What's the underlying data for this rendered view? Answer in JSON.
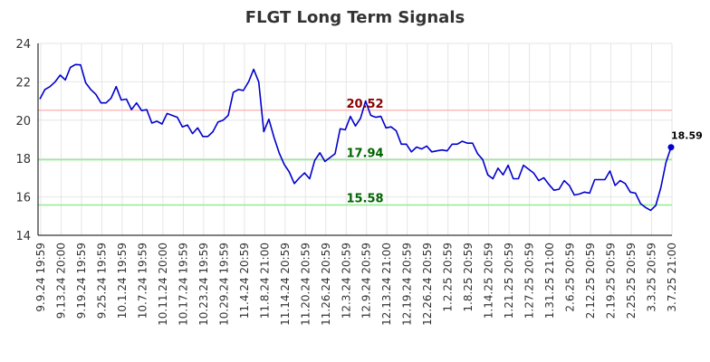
{
  "chart_data": {
    "type": "line",
    "title": "FLGT Long Term Signals",
    "xlabel": "",
    "ylabel": "",
    "ylim": [
      14,
      24
    ],
    "yticks": [
      14,
      16,
      18,
      20,
      22,
      24
    ],
    "grid": true,
    "x_tick_labels": [
      "9.9.24 19:59",
      "9.13.24 20:00",
      "9.19.24 19:59",
      "9.25.24 19:59",
      "10.1.24 19:59",
      "10.7.24 19:59",
      "10.11.24 20:00",
      "10.17.24 19:59",
      "10.23.24 19:59",
      "10.29.24 19:59",
      "11.4.24 20:59",
      "11.8.24 21:00",
      "11.14.24 20:59",
      "11.20.24 20:59",
      "11.26.24 20:59",
      "12.3.24 20:59",
      "12.9.24 20:59",
      "12.13.24 21:00",
      "12.19.24 20:59",
      "12.26.24 20:59",
      "1.2.25 20:59",
      "1.8.25 20:59",
      "1.14.25 20:59",
      "1.21.25 20:59",
      "1.27.25 20:59",
      "1.31.25 21:00",
      "2.6.25 20:59",
      "2.12.25 20:59",
      "2.19.25 20:59",
      "2.25.25 20:59",
      "3.3.25 20:59",
      "3.7.25 21:00"
    ],
    "series": [
      {
        "color": "#0000cc",
        "values": [
          21.1,
          21.6,
          21.75,
          22.0,
          22.35,
          22.1,
          22.75,
          22.9,
          22.88,
          21.95,
          21.6,
          21.35,
          20.9,
          20.9,
          21.15,
          21.75,
          21.05,
          21.1,
          20.55,
          20.9,
          20.5,
          20.55,
          19.85,
          19.95,
          19.8,
          20.35,
          20.25,
          20.15,
          19.65,
          19.75,
          19.3,
          19.6,
          19.15,
          19.15,
          19.4,
          19.9,
          20.0,
          20.25,
          21.45,
          21.6,
          21.55,
          22.0,
          22.65,
          22.0,
          19.4,
          20.05,
          19.1,
          18.3,
          17.7,
          17.3,
          16.7,
          17.0,
          17.25,
          16.95,
          17.9,
          18.3,
          17.85,
          18.05,
          18.25,
          19.55,
          19.5,
          20.2,
          19.7,
          20.1,
          21.0,
          20.25,
          20.15,
          20.2,
          19.6,
          19.65,
          19.45,
          18.75,
          18.75,
          18.35,
          18.6,
          18.5,
          18.65,
          18.35,
          18.4,
          18.45,
          18.4,
          18.75,
          18.75,
          18.9,
          18.8,
          18.8,
          18.25,
          17.95,
          17.15,
          16.95,
          17.5,
          17.15,
          17.65,
          16.95,
          16.95,
          17.65,
          17.45,
          17.25,
          16.85,
          17.0,
          16.65,
          16.35,
          16.4,
          16.85,
          16.6,
          16.1,
          16.15,
          16.25,
          16.2,
          16.9,
          16.9,
          16.9,
          17.35,
          16.6,
          16.85,
          16.7,
          16.25,
          16.2,
          15.65,
          15.45,
          15.3,
          15.55,
          16.5,
          17.8,
          18.59
        ]
      }
    ],
    "reference_lines": [
      {
        "value": 20.52,
        "label": "20.52",
        "line_color": "#ffbbbb",
        "text_color": "#8b0000"
      },
      {
        "value": 17.94,
        "label": "17.94",
        "line_color": "#90ee90",
        "text_color": "#006400"
      },
      {
        "value": 15.58,
        "label": "15.58",
        "line_color": "#90ee90",
        "text_color": "#006400"
      }
    ],
    "last_point_label": "18.59",
    "last_value": 18.59
  }
}
